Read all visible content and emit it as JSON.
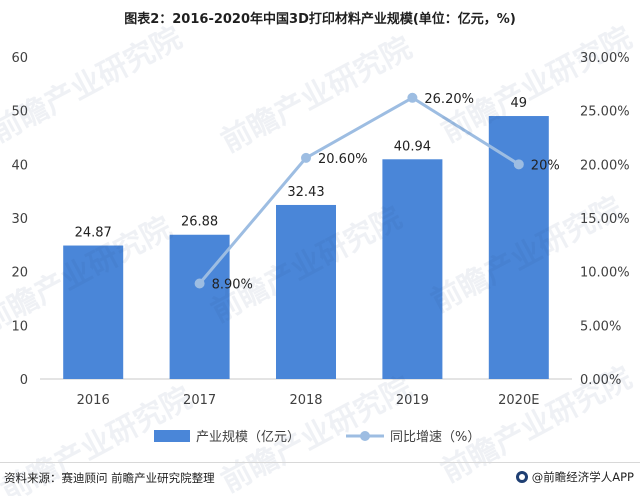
{
  "title": "图表2：2016-2020年中国3D打印材料产业规模(单位：亿元，%)",
  "source": "资料来源：赛迪顾问 前瞻产业研究院整理",
  "brand": "@前瞻经济学人APP",
  "watermark_text": "前瞻产业研究院",
  "chart_data": {
    "type": "bar",
    "categories": [
      "2016",
      "2017",
      "2018",
      "2019",
      "2020E"
    ],
    "series": [
      {
        "name": "产业规模（亿元）",
        "type": "bar",
        "axis": "left",
        "values": [
          24.87,
          26.88,
          32.43,
          40.94,
          49
        ],
        "labels": [
          "24.87",
          "26.88",
          "32.43",
          "40.94",
          "49"
        ]
      },
      {
        "name": "同比增速（%）",
        "type": "line",
        "axis": "right",
        "x": [
          "2017",
          "2018",
          "2019",
          "2020E"
        ],
        "values": [
          8.9,
          20.6,
          26.2,
          20
        ],
        "labels": [
          "8.90%",
          "20.60%",
          "26.20%",
          "20%"
        ]
      }
    ],
    "ylim_left": [
      0,
      60
    ],
    "yticks_left": [
      0,
      10,
      20,
      30,
      40,
      50,
      60
    ],
    "ylim_right": [
      0,
      30
    ],
    "yticks_right": [
      "0.00%",
      "5.00%",
      "10.00%",
      "15.00%",
      "20.00%",
      "25.00%",
      "30.00%"
    ],
    "legend_position": "bottom",
    "grid": false,
    "colors": {
      "bar": "#4a86d8",
      "line": "#9dbde2",
      "axis": "#c8c8c8",
      "text": "#404040"
    }
  }
}
